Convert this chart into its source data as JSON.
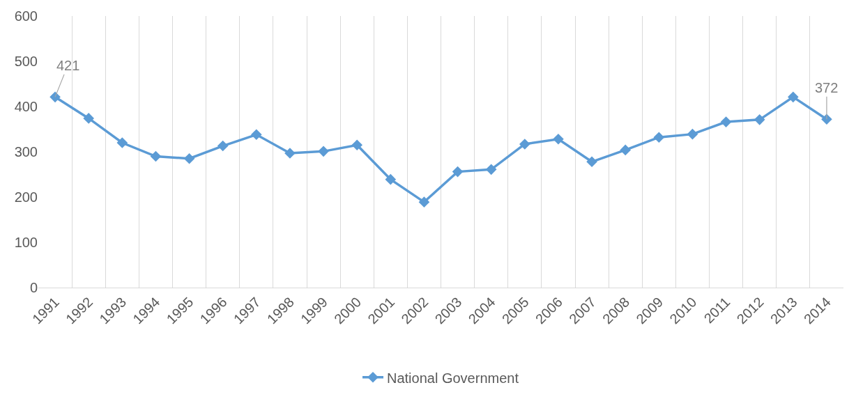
{
  "chart_data": {
    "type": "line",
    "categories": [
      "1991",
      "1992",
      "1993",
      "1994",
      "1995",
      "1996",
      "1997",
      "1998",
      "1999",
      "2000",
      "2001",
      "2002",
      "2003",
      "2004",
      "2005",
      "2006",
      "2007",
      "2008",
      "2009",
      "2010",
      "2011",
      "2012",
      "2013",
      "2014"
    ],
    "series": [
      {
        "name": "National Government",
        "color": "#5b9bd5",
        "values": [
          421,
          374,
          320,
          290,
          285,
          313,
          338,
          297,
          301,
          315,
          239,
          189,
          256,
          261,
          317,
          328,
          278,
          304,
          332,
          339,
          366,
          371,
          421,
          372
        ],
        "value_labels": [
          "421",
          null,
          null,
          null,
          null,
          null,
          null,
          null,
          null,
          null,
          null,
          null,
          null,
          null,
          null,
          null,
          null,
          null,
          null,
          null,
          null,
          null,
          null,
          "372"
        ]
      }
    ],
    "ylim": [
      0,
      600
    ],
    "yticks": [
      0,
      100,
      200,
      300,
      400,
      500,
      600
    ],
    "grid": "x",
    "legend": "bottom",
    "marker": "diamond",
    "line_style": "solid"
  }
}
